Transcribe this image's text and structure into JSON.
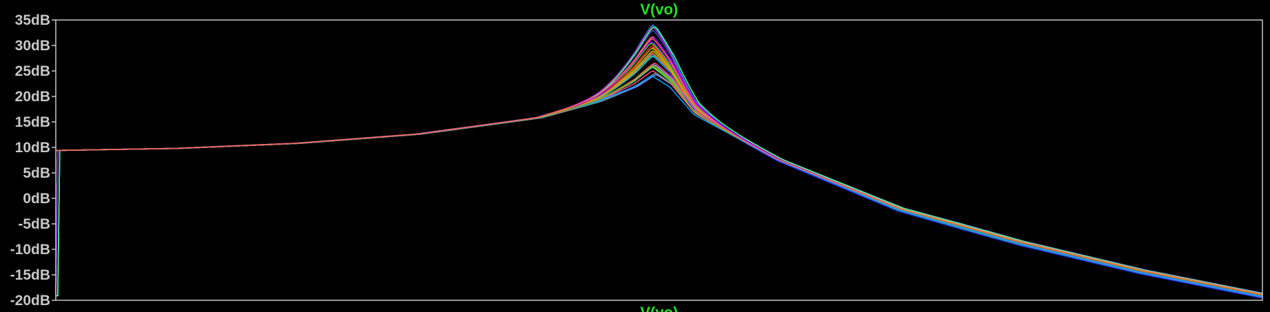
{
  "chart_data": {
    "type": "line",
    "title": "V(vo)",
    "title_color": "#22e022",
    "bottom_label": "V(vo)",
    "y_unit": "dB",
    "ylim": [
      -20,
      35
    ],
    "y_ticks": [
      35,
      30,
      25,
      20,
      15,
      10,
      5,
      0,
      -5,
      -10,
      -15,
      -20
    ],
    "y_tick_labels": [
      "35dB",
      "30dB",
      "25dB",
      "20dB",
      "15dB",
      "10dB",
      "5dB",
      "0dB",
      "-5dB",
      "-10dB",
      "-15dB",
      "-20dB"
    ],
    "x_scale": "log",
    "x_tick_labels_visible": false,
    "grid": false,
    "background": "#000000",
    "frame_color": "#c8c8c8",
    "x": [
      0,
      0.1,
      0.2,
      0.3,
      0.4,
      0.45,
      0.48,
      0.495,
      0.51,
      0.53,
      0.6,
      0.7,
      0.8,
      0.9,
      1.0
    ],
    "base_curve": [
      9.4,
      9.8,
      10.8,
      12.6,
      15.8,
      19.0,
      21.8,
      24.0,
      21.8,
      16.4,
      7.5,
      -2.2,
      -8.8,
      -14.4,
      -19.1
    ],
    "monte_carlo_runs": 30,
    "peak_range_db": [
      23.8,
      34.2
    ],
    "series_colors": [
      "#ff2020",
      "#22dd22",
      "#2030ff",
      "#20c0c0",
      "#c020c0",
      "#c0c020",
      "#ff8000",
      "#8080ff",
      "#ff4080",
      "#40ff80",
      "#8000ff",
      "#00a0ff",
      "#a0a000",
      "#ff6060",
      "#60a060",
      "#4040c0"
    ]
  }
}
